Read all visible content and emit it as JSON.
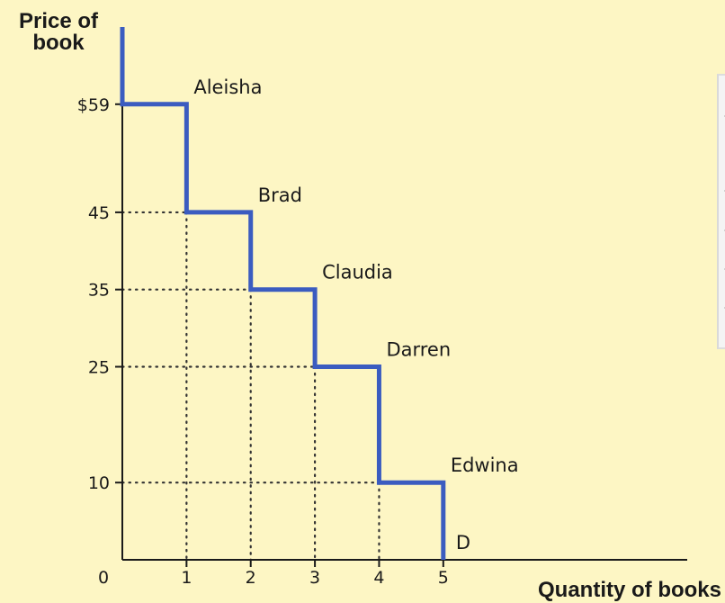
{
  "chart_data": {
    "type": "line",
    "subtype": "step-demand-curve",
    "ylabel": [
      "Price of",
      "book"
    ],
    "xlabel": "Quantity of books",
    "origin_label": "0",
    "x_ticks": [
      {
        "value": 1,
        "label": "1"
      },
      {
        "value": 2,
        "label": "2"
      },
      {
        "value": 3,
        "label": "3"
      },
      {
        "value": 4,
        "label": "4"
      },
      {
        "value": 5,
        "label": "5"
      }
    ],
    "y_ticks": [
      {
        "value": 59,
        "label": "$59"
      },
      {
        "value": 45,
        "label": "45"
      },
      {
        "value": 35,
        "label": "35"
      },
      {
        "value": 25,
        "label": "25"
      },
      {
        "value": 10,
        "label": "10"
      }
    ],
    "xlim": [
      0,
      8.8
    ],
    "ylim": [
      0,
      69
    ],
    "steps": [
      {
        "name": "Aleisha",
        "price": 59,
        "quantity_from": 0,
        "quantity_to": 1
      },
      {
        "name": "Brad",
        "price": 45,
        "quantity_from": 1,
        "quantity_to": 2
      },
      {
        "name": "Claudia",
        "price": 35,
        "quantity_from": 2,
        "quantity_to": 3
      },
      {
        "name": "Darren",
        "price": 25,
        "quantity_from": 3,
        "quantity_to": 4
      },
      {
        "name": "Edwina",
        "price": 10,
        "quantity_from": 4,
        "quantity_to": 5
      }
    ],
    "curve_label": "D",
    "grid": false,
    "colors": {
      "curve": "#3b5cc0",
      "axis": "#1a1a1a",
      "guides": "#333333",
      "background": "#fdf6c4"
    }
  }
}
